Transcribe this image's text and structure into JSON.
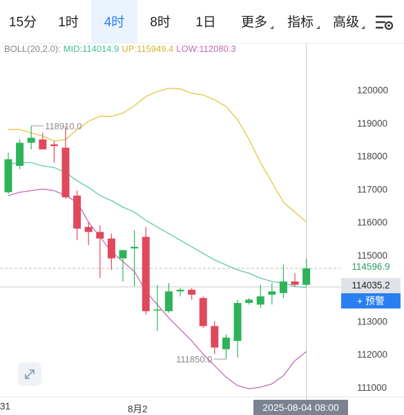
{
  "tabs": [
    {
      "label": "15分",
      "active": false
    },
    {
      "label": "1时",
      "active": false
    },
    {
      "label": "4时",
      "active": true
    },
    {
      "label": "8时",
      "active": false
    },
    {
      "label": "1日",
      "active": false
    },
    {
      "label": "更多",
      "active": false,
      "dropdown": true
    },
    {
      "label": "指标",
      "active": false,
      "dropdown": true
    },
    {
      "label": "高级",
      "active": false,
      "dropdown": true
    }
  ],
  "settings_icon": "chart-settings-icon",
  "expand_icon": "expand-arrows-icon",
  "legend": {
    "boll": "BOLL(20,2.0):",
    "mid": "MID:114014.9",
    "up": "UP:115949.4",
    "low": "LOW:112080.3"
  },
  "colors": {
    "up_candle": "#2fb35a",
    "down_candle": "#e0485c",
    "mid_line": "#5cc9a7",
    "up_line": "#e2c541",
    "low_line": "#c36ab4",
    "accent": "#2a7ff0"
  },
  "price_axis": {
    "ticks": [
      "120000",
      "119000",
      "118000",
      "117000",
      "116000",
      "115000",
      "113000",
      "112000",
      "111000"
    ],
    "last_price": "114596.9",
    "current_price": "114035.2",
    "alert_label": "+ 预警"
  },
  "annotations": {
    "high": "118910.0",
    "low": "111850.0"
  },
  "x_axis": {
    "labels": [
      "31",
      "8月2"
    ],
    "crosshair_time": "2025-08-04 08:00"
  },
  "chart_data": {
    "type": "candlestick",
    "ylim": [
      110500,
      121000
    ],
    "candles": [
      {
        "o": 116900,
        "h": 118100,
        "l": 116850,
        "c": 117900
      },
      {
        "o": 117700,
        "h": 118500,
        "l": 117600,
        "c": 118400
      },
      {
        "o": 118400,
        "h": 118910,
        "l": 118200,
        "c": 118550
      },
      {
        "o": 118500,
        "h": 118700,
        "l": 118200,
        "c": 118200
      },
      {
        "o": 118350,
        "h": 118450,
        "l": 117800,
        "c": 118300
      },
      {
        "o": 118250,
        "h": 118900,
        "l": 116700,
        "c": 116750
      },
      {
        "o": 116800,
        "h": 116950,
        "l": 115450,
        "c": 115800
      },
      {
        "o": 115850,
        "h": 116000,
        "l": 115300,
        "c": 115700
      },
      {
        "o": 115700,
        "h": 115900,
        "l": 114300,
        "c": 115500
      },
      {
        "o": 115500,
        "h": 115650,
        "l": 114550,
        "c": 114900
      },
      {
        "o": 114900,
        "h": 115150,
        "l": 114200,
        "c": 115150
      },
      {
        "o": 115200,
        "h": 115750,
        "l": 114050,
        "c": 115250
      },
      {
        "o": 115550,
        "h": 115850,
        "l": 113200,
        "c": 113300
      },
      {
        "o": 113350,
        "h": 114100,
        "l": 112700,
        "c": 113350
      },
      {
        "o": 113300,
        "h": 114150,
        "l": 113250,
        "c": 113900
      },
      {
        "o": 113900,
        "h": 114000,
        "l": 113750,
        "c": 113950
      },
      {
        "o": 113950,
        "h": 114000,
        "l": 113650,
        "c": 113800
      },
      {
        "o": 113700,
        "h": 113750,
        "l": 112800,
        "c": 112850
      },
      {
        "o": 112850,
        "h": 113000,
        "l": 112000,
        "c": 112200
      },
      {
        "o": 112150,
        "h": 112600,
        "l": 111850,
        "c": 112500
      },
      {
        "o": 112400,
        "h": 113650,
        "l": 111900,
        "c": 113550
      },
      {
        "o": 113550,
        "h": 113700,
        "l": 113500,
        "c": 113650
      },
      {
        "o": 113500,
        "h": 114100,
        "l": 113400,
        "c": 113750
      },
      {
        "o": 113800,
        "h": 114150,
        "l": 113500,
        "c": 113900
      },
      {
        "o": 113850,
        "h": 114700,
        "l": 113700,
        "c": 114200
      },
      {
        "o": 114200,
        "h": 114450,
        "l": 114050,
        "c": 114100
      },
      {
        "o": 114100,
        "h": 114900,
        "l": 114050,
        "c": 114600
      }
    ],
    "boll_up": [
      118800,
      118800,
      118700,
      118600,
      118450,
      118500,
      118800,
      119050,
      119200,
      119200,
      119300,
      119520,
      119800,
      119950,
      120050,
      120030,
      119900,
      119850,
      119700,
      119500,
      119100,
      118500,
      117800,
      117200,
      116600,
      116300,
      116000
    ],
    "boll_mid": [
      117750,
      117800,
      117800,
      117700,
      117650,
      117500,
      117250,
      117050,
      116800,
      116650,
      116450,
      116300,
      116050,
      115850,
      115650,
      115450,
      115250,
      115050,
      114850,
      114700,
      114550,
      114450,
      114300,
      114200,
      114150,
      114050,
      114014.9
    ],
    "boll_low": [
      116800,
      116900,
      116950,
      117000,
      116950,
      116800,
      116600,
      116000,
      115550,
      115100,
      114800,
      114500,
      113900,
      113500,
      113100,
      112750,
      112400,
      112000,
      111650,
      111300,
      111050,
      110950,
      111000,
      111100,
      111350,
      111800,
      112080.3
    ]
  }
}
